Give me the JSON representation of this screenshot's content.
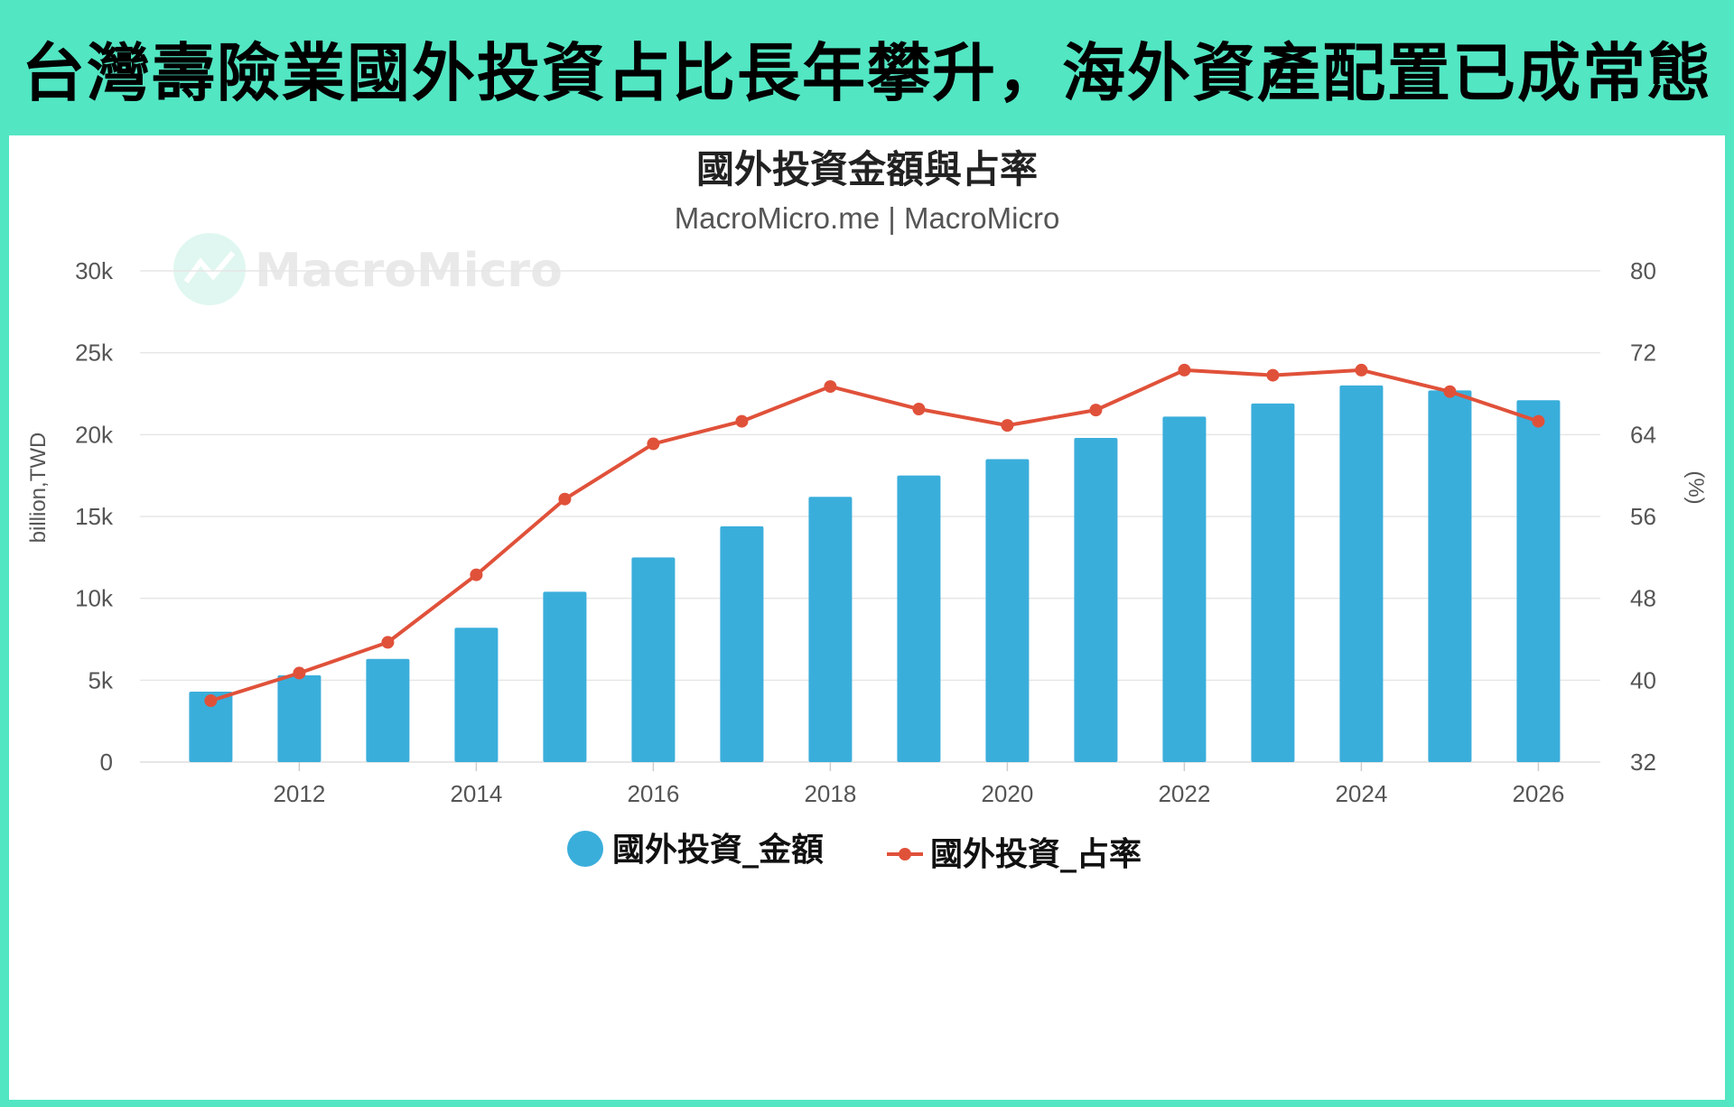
{
  "headline": "台灣壽險業國外投資占比長年攀升，海外資產配置已成常態",
  "watermark": "MacroMicro",
  "colors": {
    "frame": "#52e6c3",
    "bar": "#3aaedb",
    "line": "#e0513a",
    "grid": "#e6e6e6"
  },
  "chart_data": {
    "type": "bar",
    "title": "國外投資金額與占率",
    "subtitle": "MacroMicro.me | MacroMicro",
    "x": [
      2011,
      2012,
      2013,
      2014,
      2015,
      2016,
      2017,
      2018,
      2019,
      2020,
      2021,
      2022,
      2023,
      2024,
      2025,
      2026
    ],
    "x_ticks": [
      "2012",
      "2014",
      "2016",
      "2018",
      "2020",
      "2022",
      "2024",
      "2026"
    ],
    "xlim": [
      2010.2,
      2026.7
    ],
    "y_left": {
      "label": "billion,TWD",
      "ylim": [
        0,
        30000
      ],
      "ticks": [
        "0",
        "5k",
        "10k",
        "15k",
        "20k",
        "25k",
        "30k"
      ]
    },
    "y_right": {
      "label": "(%)",
      "ylim": [
        32,
        80
      ],
      "ticks": [
        "32",
        "40",
        "48",
        "56",
        "64",
        "72",
        "80"
      ]
    },
    "grid": true,
    "legend_position": "bottom",
    "series": [
      {
        "name": "國外投資_金額",
        "type": "bar",
        "axis": "left",
        "values": [
          4300,
          5300,
          6300,
          8200,
          10400,
          12500,
          14400,
          16200,
          17500,
          18500,
          19800,
          21100,
          21900,
          23000,
          22700,
          22100
        ]
      },
      {
        "name": "國外投資_占率",
        "type": "line",
        "axis": "right",
        "values": [
          38.0,
          40.7,
          43.7,
          50.3,
          57.7,
          63.1,
          65.3,
          68.7,
          66.5,
          64.9,
          66.4,
          70.3,
          69.8,
          70.3,
          68.2,
          65.3
        ]
      }
    ]
  }
}
